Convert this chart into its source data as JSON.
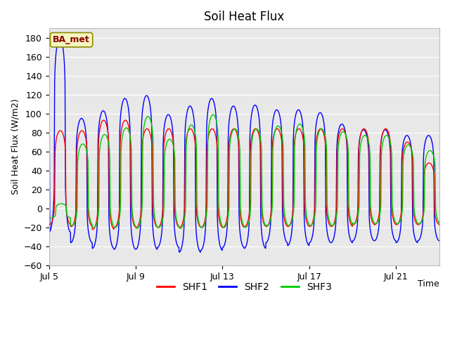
{
  "title": "Soil Heat Flux",
  "ylabel": "Soil Heat Flux (W/m2)",
  "xlabel": "Time",
  "ylim": [
    -60,
    190
  ],
  "yticks": [
    -60,
    -40,
    -20,
    0,
    20,
    40,
    60,
    80,
    100,
    120,
    140,
    160,
    180
  ],
  "xtick_labels": [
    "Jul 5",
    "Jul 9",
    "Jul 13",
    "Jul 17",
    "Jul 21"
  ],
  "xtick_day_offsets": [
    0,
    4,
    8,
    12,
    16
  ],
  "colors": {
    "SHF1": "#ff0000",
    "SHF2": "#0000ff",
    "SHF3": "#00cc00"
  },
  "annotation_text": "BA_met",
  "bg_color": "#e8e8e8",
  "n_days": 18,
  "dt_hours": 0.25,
  "shf1_peaks": [
    82,
    82,
    93,
    93,
    84,
    84,
    84,
    84,
    84,
    84,
    84,
    84,
    84,
    84,
    84,
    84,
    70,
    48
  ],
  "shf2_peaks": [
    180,
    95,
    103,
    116,
    119,
    99,
    108,
    116,
    108,
    109,
    104,
    104,
    101,
    89,
    83,
    83,
    77,
    77
  ],
  "shf3_peaks": [
    5,
    68,
    78,
    85,
    97,
    73,
    88,
    99,
    84,
    84,
    87,
    89,
    84,
    81,
    77,
    77,
    67,
    61
  ],
  "shf1_troughs": [
    -17,
    -19,
    -22,
    -20,
    -20,
    -20,
    -20,
    -20,
    -20,
    -19,
    -19,
    -19,
    -19,
    -19,
    -17,
    -17,
    -17,
    -17
  ],
  "shf2_troughs": [
    -25,
    -36,
    -42,
    -43,
    -43,
    -41,
    -46,
    -44,
    -41,
    -42,
    -36,
    -39,
    -36,
    -36,
    -34,
    -34,
    -36,
    -34
  ],
  "shf3_troughs": [
    -10,
    -18,
    -20,
    -20,
    -21,
    -20,
    -21,
    -20,
    -20,
    -20,
    -18,
    -18,
    -18,
    -18,
    -16,
    -16,
    -16,
    -16
  ],
  "shf1_peak_hour": 12.5,
  "shf2_peak_hour": 12.0,
  "shf3_peak_hour": 13.5,
  "sharpness": 4.5
}
